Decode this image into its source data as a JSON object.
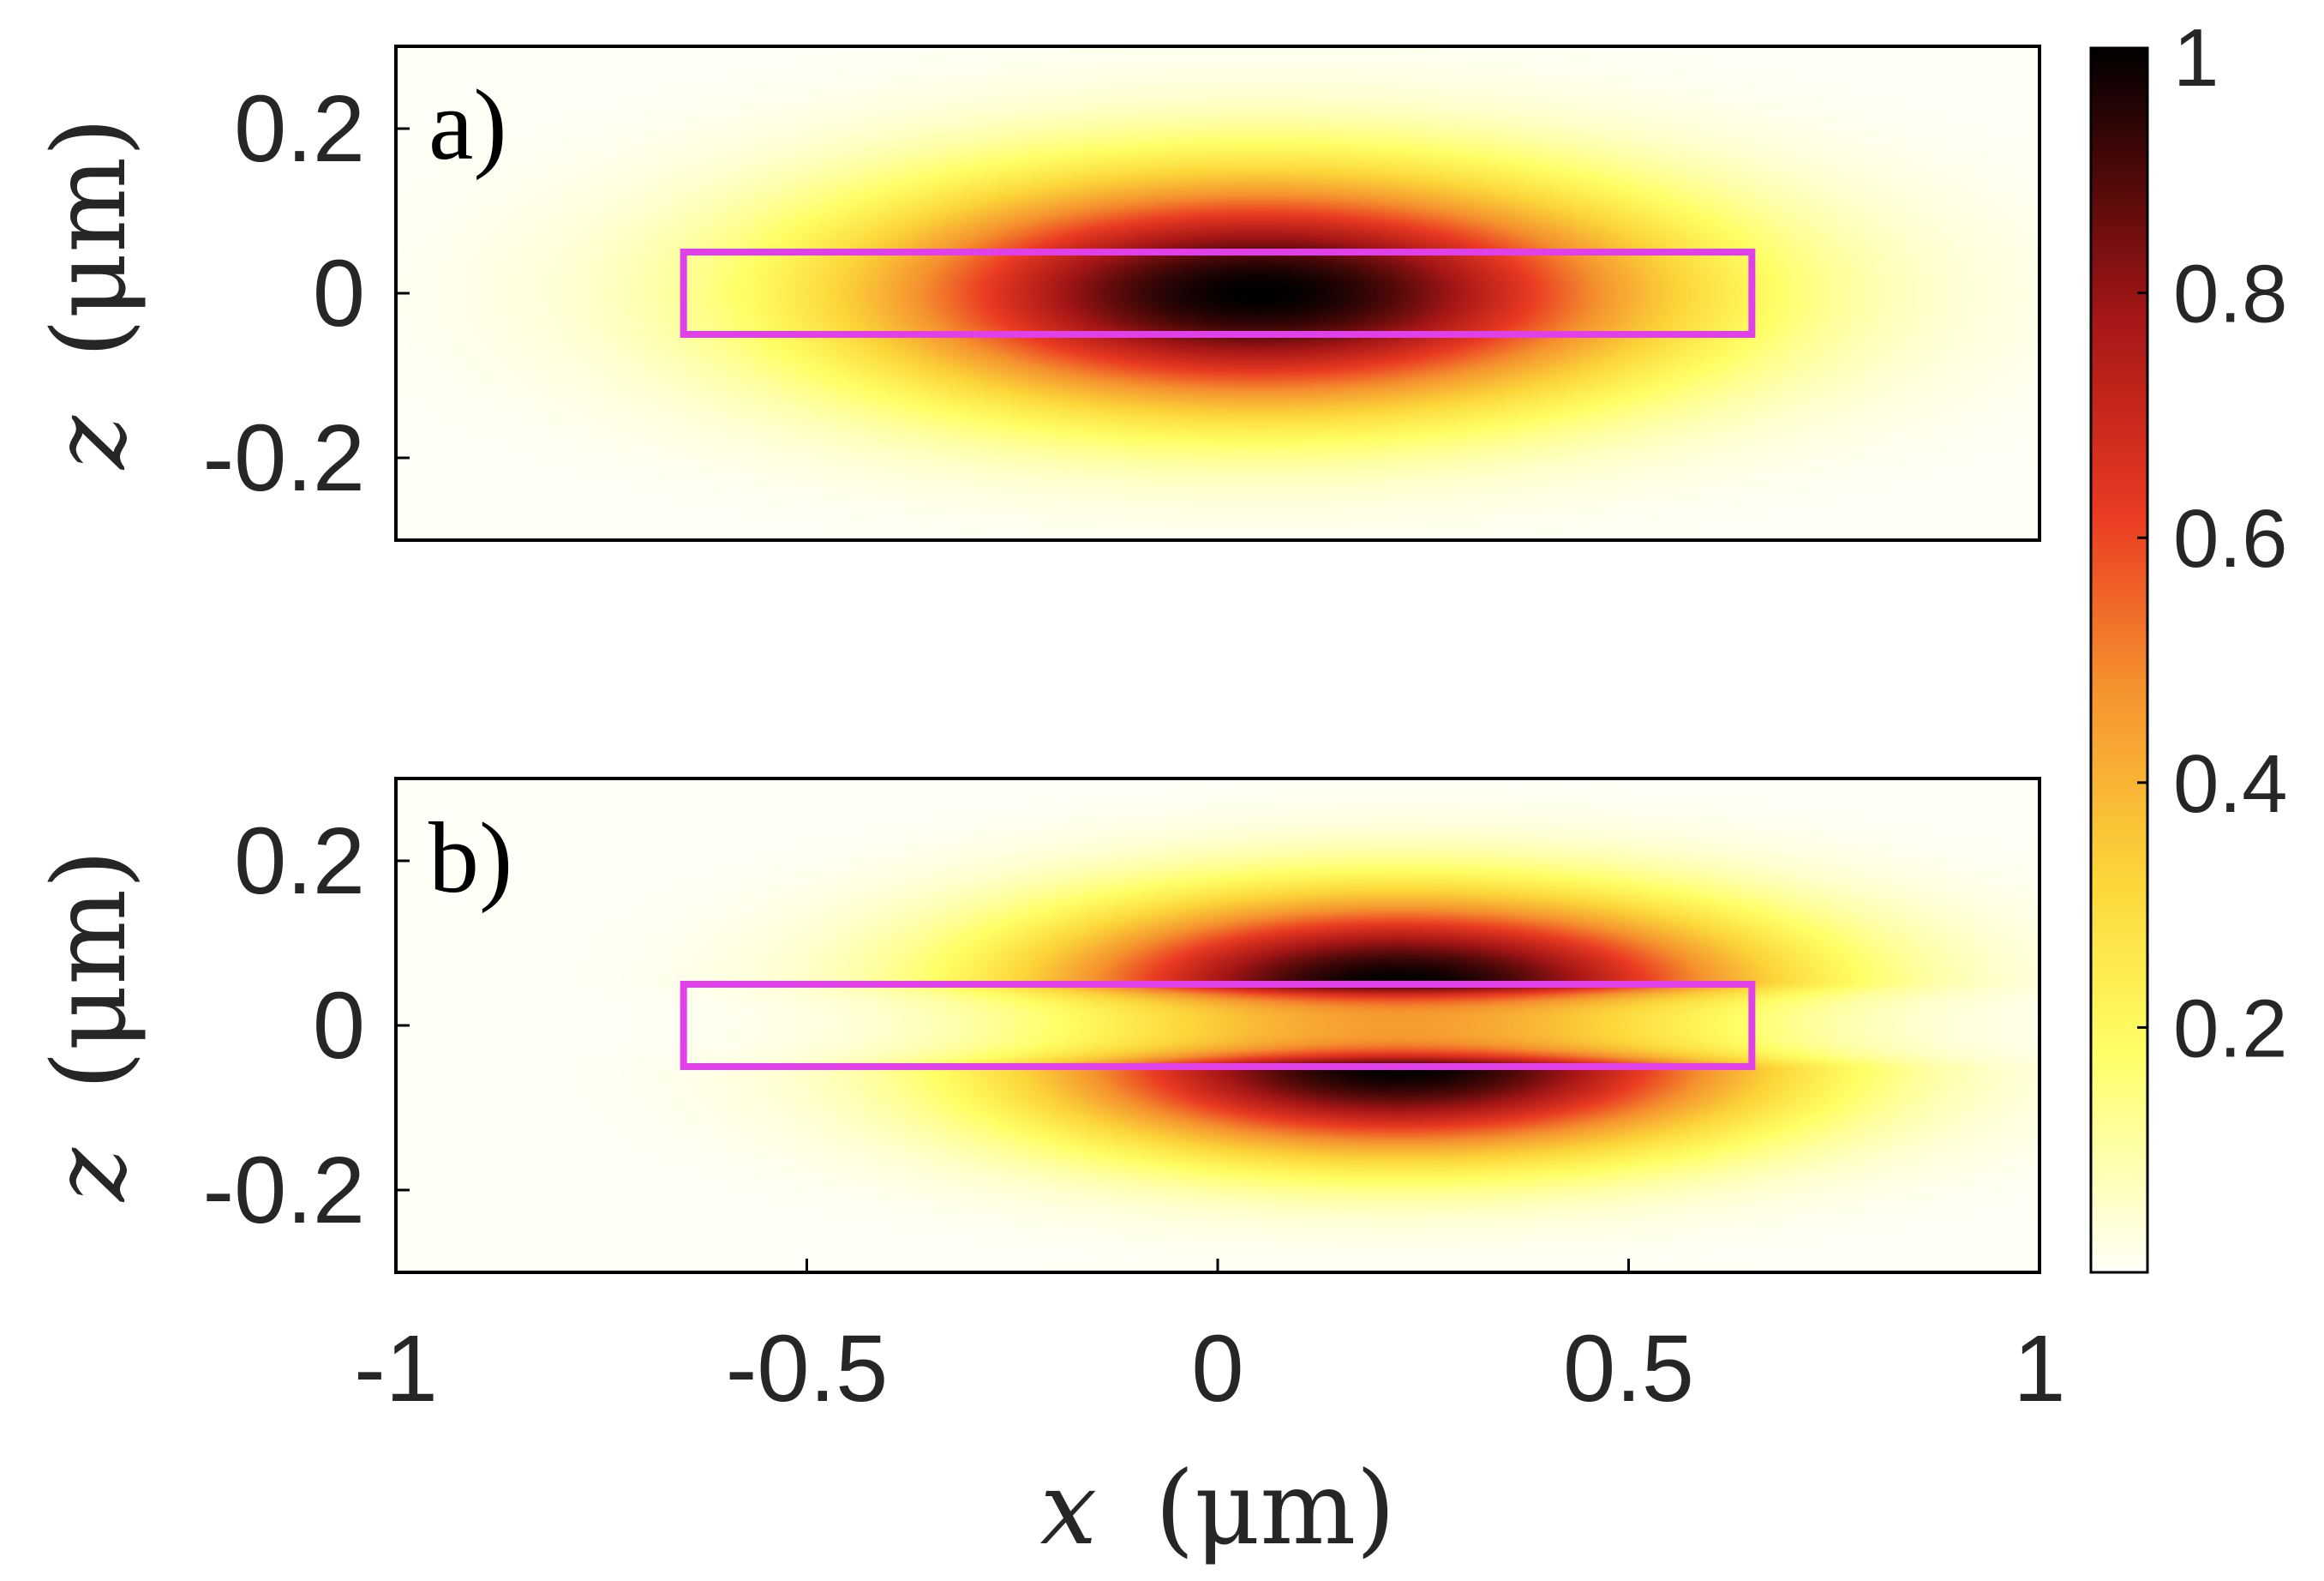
{
  "chart_data": [
    {
      "type": "heatmap",
      "panel_label": "a)",
      "xlim": [
        -1,
        1
      ],
      "ylim": [
        -0.3,
        0.3
      ],
      "y_ticks": [
        0.2,
        0,
        -0.2
      ],
      "y_tick_labels": [
        "0.2",
        "0",
        "-0.2"
      ],
      "ylabel": {
        "var": "z",
        "unit": "(μm)"
      },
      "field": {
        "mode": "single-lobe",
        "peak_x": 0.05,
        "peak_z": 0.0,
        "peak_value": 1.0,
        "sigma_x": 0.38,
        "sigma_z": 0.11
      },
      "waveguide_outline": {
        "x": [
          -0.65,
          0.65
        ],
        "z": [
          -0.05,
          0.05
        ]
      }
    },
    {
      "type": "heatmap",
      "panel_label": "b)",
      "xlim": [
        -1,
        1
      ],
      "ylim": [
        -0.3,
        0.3
      ],
      "y_ticks": [
        0.2,
        0,
        -0.2
      ],
      "y_tick_labels": [
        "0.2",
        "0",
        "-0.2"
      ],
      "ylabel": {
        "var": "z",
        "unit": "(μm)"
      },
      "x_ticks": [
        -1,
        -0.5,
        0,
        0.5,
        1
      ],
      "x_tick_labels": [
        "-1",
        "-0.5",
        "0",
        "0.5",
        "1"
      ],
      "xlabel": {
        "var": "x",
        "unit": "(μm)"
      },
      "field": {
        "mode": "double-lobe",
        "peak_x": 0.22,
        "peak_z_top": 0.05,
        "peak_z_bottom": -0.05,
        "peak_value": 1.0,
        "center_value": 0.45,
        "sigma_x": 0.34,
        "sigma_z": 0.09
      },
      "waveguide_outline": {
        "x": [
          -0.65,
          0.65
        ],
        "z": [
          -0.05,
          0.05
        ]
      }
    }
  ],
  "colorbar": {
    "colormap": "hot (reversed)",
    "range": [
      0,
      1
    ],
    "ticks": [
      1,
      0.8,
      0.6,
      0.4,
      0.2
    ],
    "tick_labels": [
      "1",
      "0.8",
      "0.6",
      "0.4",
      "0.2"
    ]
  },
  "colors": {
    "outline": "#e040e8",
    "axes": "#000000",
    "text": "#262626"
  }
}
